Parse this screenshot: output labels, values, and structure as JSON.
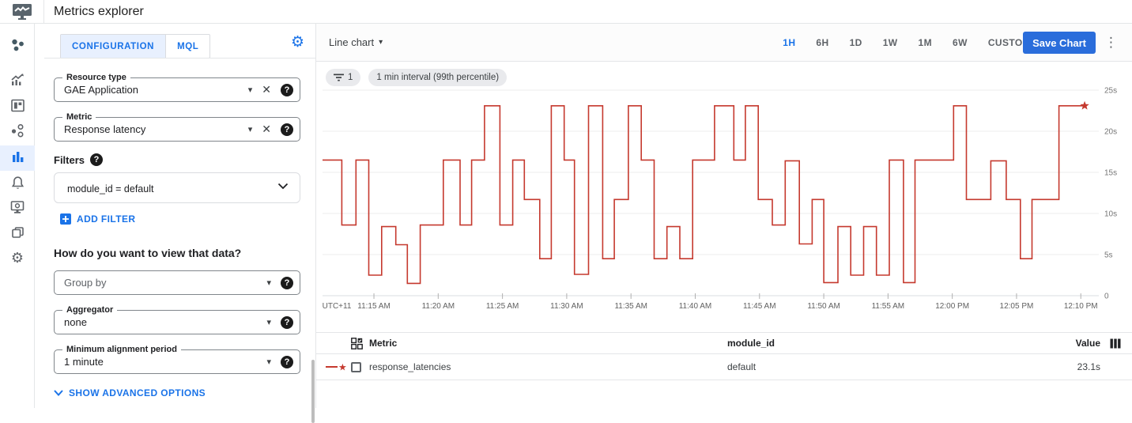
{
  "header": {
    "title": "Metrics explorer"
  },
  "icons": {
    "help": "?",
    "close": "✕",
    "caret": "▾",
    "more_vert": "⋮",
    "gear": "⚙",
    "star": "★"
  },
  "sidebar": {
    "items": [
      "overview",
      "metrics",
      "dashboards",
      "services",
      "metrics-explorer",
      "alerting",
      "uptime-checks",
      "groups",
      "settings"
    ],
    "active": "metrics-explorer"
  },
  "config": {
    "tabs": [
      {
        "label": "CONFIGURATION",
        "selected": true
      },
      {
        "label": "MQL",
        "selected": false
      }
    ],
    "resource_type": {
      "label": "Resource type",
      "value": "GAE Application"
    },
    "metric": {
      "label": "Metric",
      "value": "Response latency"
    },
    "filters_heading": "Filters",
    "filter_value": "module_id = default",
    "add_filter_label": "ADD FILTER",
    "view_heading": "How do you want to view that data?",
    "group_by": {
      "placeholder": "Group by"
    },
    "aggregator": {
      "label": "Aggregator",
      "value": "none"
    },
    "min_alignment": {
      "label": "Minimum alignment period",
      "value": "1 minute"
    },
    "advanced_label": "SHOW ADVANCED OPTIONS"
  },
  "toolbar": {
    "chart_type_label": "Line chart",
    "time_ranges": [
      "1H",
      "6H",
      "1D",
      "1W",
      "1M",
      "6W",
      "CUSTOM"
    ],
    "selected_range": "1H",
    "save_label": "Save Chart"
  },
  "chips": {
    "filter_count": "1",
    "interval_label": "1 min interval (99th percentile)"
  },
  "chart_data": {
    "type": "line",
    "subtype": "step-after",
    "title": "",
    "x_start_label": "UTC+11",
    "x_ticks": [
      "11:15 AM",
      "11:20 AM",
      "11:25 AM",
      "11:30 AM",
      "11:35 AM",
      "11:40 AM",
      "11:45 AM",
      "11:50 AM",
      "11:55 AM",
      "12:00 PM",
      "12:05 PM",
      "12:10 PM"
    ],
    "x_window_minutes": 60.4,
    "x_first_tick_offset_min": 4,
    "x_tick_interval_min": 5,
    "y_ticks": [
      {
        "v": 25,
        "label": "25s"
      },
      {
        "v": 20,
        "label": "20s"
      },
      {
        "v": 15,
        "label": "15s"
      },
      {
        "v": 10,
        "label": "10s"
      },
      {
        "v": 5,
        "label": "5s"
      },
      {
        "v": 0,
        "label": "0"
      }
    ],
    "ylim": [
      0,
      26.5
    ],
    "grid": true,
    "legend_position": "table-below",
    "series": [
      {
        "name": "response_latencies",
        "color": "#c5392e",
        "end_marker": "star",
        "end_t": 59.3,
        "steps": [
          [
            0,
            16.5
          ],
          [
            1.5,
            8.6
          ],
          [
            2.6,
            16.5
          ],
          [
            3.6,
            2.5
          ],
          [
            4.6,
            8.4
          ],
          [
            5.7,
            6.2
          ],
          [
            6.6,
            1.5
          ],
          [
            7.6,
            8.6
          ],
          [
            9.4,
            16.5
          ],
          [
            10.7,
            8.6
          ],
          [
            11.6,
            16.5
          ],
          [
            12.6,
            23.1
          ],
          [
            13.8,
            8.6
          ],
          [
            14.8,
            16.5
          ],
          [
            15.7,
            11.7
          ],
          [
            16.9,
            4.5
          ],
          [
            17.8,
            23.1
          ],
          [
            18.8,
            16.5
          ],
          [
            19.6,
            2.6
          ],
          [
            20.7,
            23.1
          ],
          [
            21.8,
            4.5
          ],
          [
            22.7,
            11.7
          ],
          [
            23.8,
            23.1
          ],
          [
            24.8,
            16.5
          ],
          [
            25.8,
            4.5
          ],
          [
            26.8,
            8.4
          ],
          [
            27.8,
            4.5
          ],
          [
            28.8,
            16.5
          ],
          [
            30.5,
            23.1
          ],
          [
            32,
            16.5
          ],
          [
            32.9,
            23.1
          ],
          [
            33.9,
            11.7
          ],
          [
            35,
            8.6
          ],
          [
            36,
            16.4
          ],
          [
            37.1,
            6.3
          ],
          [
            38.1,
            11.7
          ],
          [
            39,
            1.6
          ],
          [
            40.1,
            8.4
          ],
          [
            41.1,
            2.5
          ],
          [
            42.1,
            8.4
          ],
          [
            43.1,
            2.5
          ],
          [
            44.1,
            16.5
          ],
          [
            45.2,
            1.6
          ],
          [
            46.1,
            16.5
          ],
          [
            49.1,
            23.1
          ],
          [
            50.1,
            11.7
          ],
          [
            52,
            16.4
          ],
          [
            53.2,
            11.7
          ],
          [
            54.3,
            4.5
          ],
          [
            55.2,
            11.7
          ],
          [
            57.3,
            23.1
          ]
        ]
      }
    ]
  },
  "table": {
    "columns": {
      "metric": "Metric",
      "module_id": "module_id",
      "value": "Value"
    },
    "rows": [
      {
        "metric": "response_latencies",
        "module_id": "default",
        "value": "23.1s"
      }
    ]
  },
  "colors": {
    "accent_blue": "#1a73e8",
    "chart_red": "#c5392e",
    "tab_selected_bg": "#e8f0fe"
  }
}
